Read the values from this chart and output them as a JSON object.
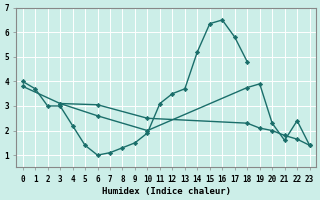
{
  "xlabel": "Humidex (Indice chaleur)",
  "bg_color": "#cceee8",
  "line_color": "#1a6e6a",
  "grid_color": "#ffffff",
  "lines": [
    {
      "x": [
        0,
        1,
        2,
        3,
        4,
        5,
        6,
        7,
        8,
        9,
        10,
        11,
        12,
        13,
        14,
        15,
        16,
        17,
        18
      ],
      "y": [
        4.0,
        3.7,
        3.0,
        3.0,
        2.2,
        1.4,
        1.0,
        1.1,
        1.3,
        1.5,
        1.9,
        3.1,
        3.5,
        3.7,
        5.2,
        6.35,
        6.5,
        5.8,
        4.8
      ]
    },
    {
      "x": [
        3,
        6,
        10,
        18,
        19,
        20,
        21,
        22,
        23
      ],
      "y": [
        3.1,
        2.6,
        2.0,
        3.75,
        3.9,
        2.3,
        1.6,
        2.4,
        1.4
      ]
    },
    {
      "x": [
        0,
        3,
        6,
        10,
        18,
        19,
        20,
        21,
        22,
        23
      ],
      "y": [
        3.8,
        3.1,
        3.05,
        2.5,
        2.3,
        2.1,
        2.0,
        1.8,
        1.65,
        1.4
      ]
    }
  ],
  "xlim": [
    -0.5,
    23.5
  ],
  "ylim": [
    0.5,
    7.0
  ],
  "yticks": [
    1,
    2,
    3,
    4,
    5,
    6,
    7
  ],
  "xticks": [
    0,
    1,
    2,
    3,
    4,
    5,
    6,
    7,
    8,
    9,
    10,
    11,
    12,
    13,
    14,
    15,
    16,
    17,
    18,
    19,
    20,
    21,
    22,
    23
  ]
}
